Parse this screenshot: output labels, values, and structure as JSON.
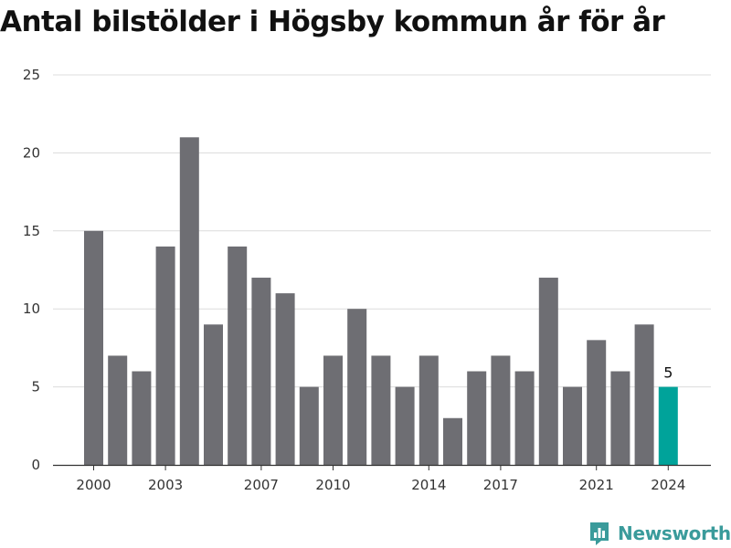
{
  "chart_data": {
    "type": "bar",
    "title": "Antal bilstölder i Högsby kommun år för år",
    "xlabel": "",
    "ylabel": "",
    "x": [
      2000,
      2001,
      2002,
      2003,
      2004,
      2005,
      2006,
      2007,
      2008,
      2009,
      2010,
      2011,
      2012,
      2013,
      2014,
      2015,
      2016,
      2017,
      2018,
      2019,
      2020,
      2021,
      2022,
      2023,
      2024
    ],
    "values": [
      15,
      7,
      6,
      14,
      21,
      9,
      14,
      12,
      11,
      5,
      7,
      10,
      7,
      5,
      7,
      3,
      6,
      7,
      6,
      12,
      5,
      8,
      6,
      9,
      5
    ],
    "ylim": [
      0,
      25
    ],
    "yticks": [
      0,
      5,
      10,
      15,
      20,
      25
    ],
    "xtick_labels": [
      "2000",
      "2003",
      "2007",
      "2010",
      "2014",
      "2017",
      "2021",
      "2024"
    ],
    "highlight": {
      "year": 2024,
      "label": "5",
      "color": "#00a39a"
    },
    "bar_color": "#6e6e73",
    "grid": true
  },
  "brand": {
    "name": "Newsworthy",
    "color": "#3a9b9b"
  }
}
